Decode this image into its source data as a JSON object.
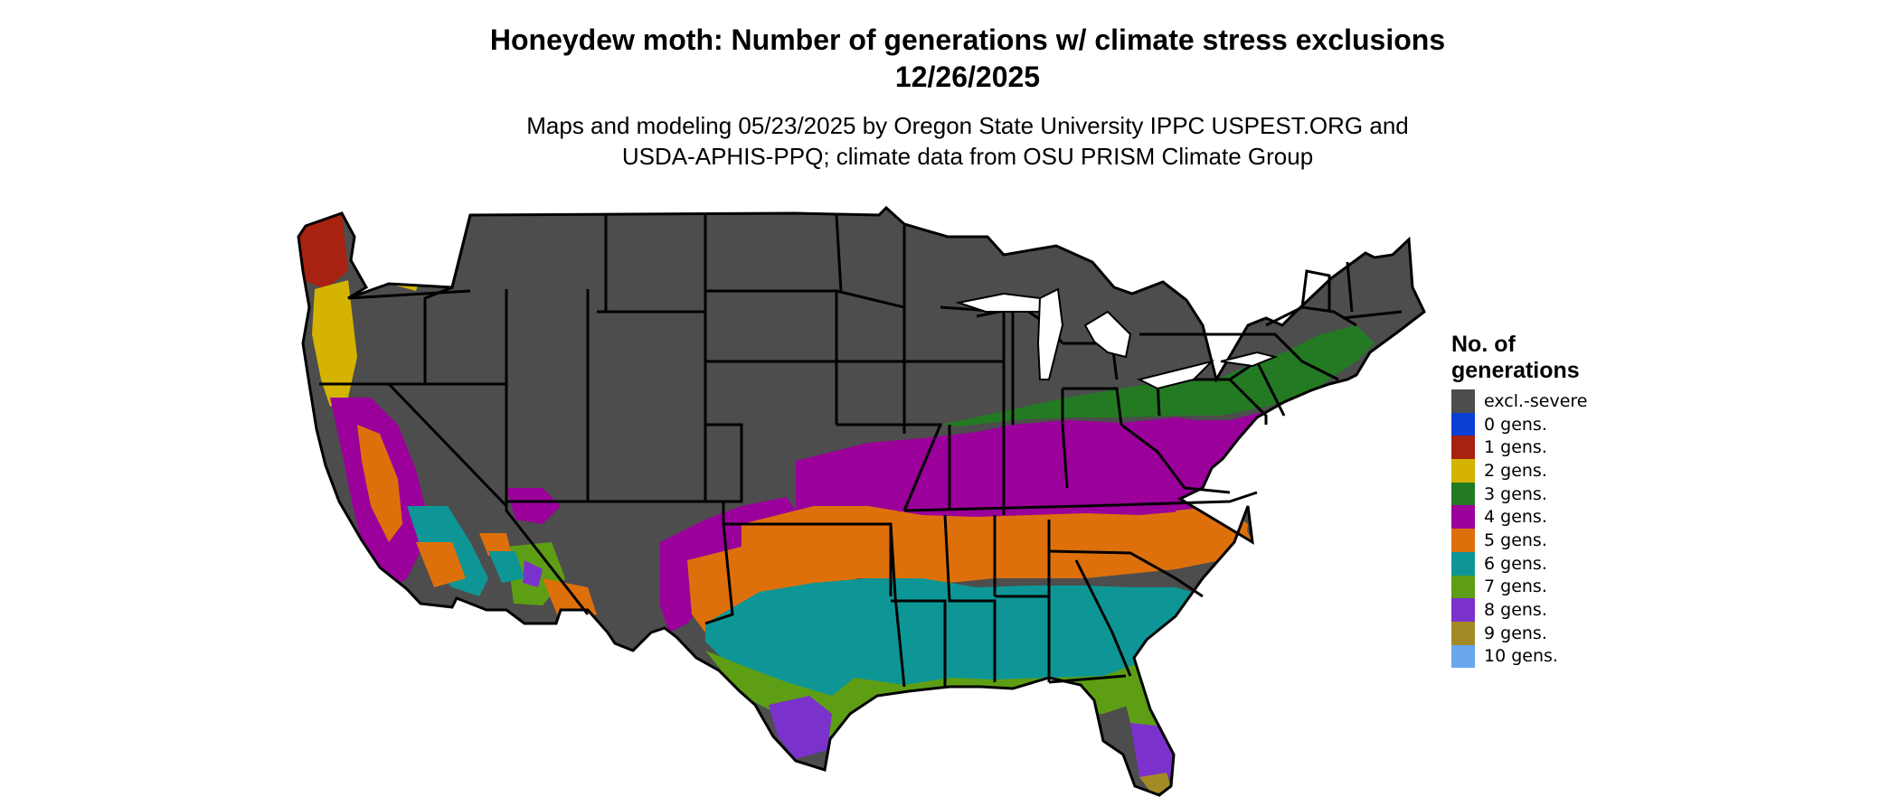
{
  "title_line1": "Honeydew moth: Number of generations w/ climate stress exclusions",
  "title_line2": "12/26/2025",
  "subtitle_line1": "Maps and modeling 05/23/2025 by Oregon State University IPPC USPEST.ORG and",
  "subtitle_line2": "USDA-APHIS-PPQ; climate data from OSU PRISM Climate Group",
  "legend": {
    "title_line1": "No. of",
    "title_line2": "generations",
    "items": [
      {
        "label": "excl.-severe",
        "color": "#4d4d4d"
      },
      {
        "label": "0 gens.",
        "color": "#0a3fd6"
      },
      {
        "label": "1 gens.",
        "color": "#a82212"
      },
      {
        "label": "2 gens.",
        "color": "#d4b400"
      },
      {
        "label": "3 gens.",
        "color": "#237a23"
      },
      {
        "label": "4 gens.",
        "color": "#9b009b"
      },
      {
        "label": "5 gens.",
        "color": "#de700c"
      },
      {
        "label": "6 gens.",
        "color": "#0e9696"
      },
      {
        "label": "7 gens.",
        "color": "#5d9e14"
      },
      {
        "label": "8 gens.",
        "color": "#7b32cc"
      },
      {
        "label": "9 gens.",
        "color": "#a38a25"
      },
      {
        "label": "10 gens.",
        "color": "#6aa6ee"
      }
    ]
  }
}
